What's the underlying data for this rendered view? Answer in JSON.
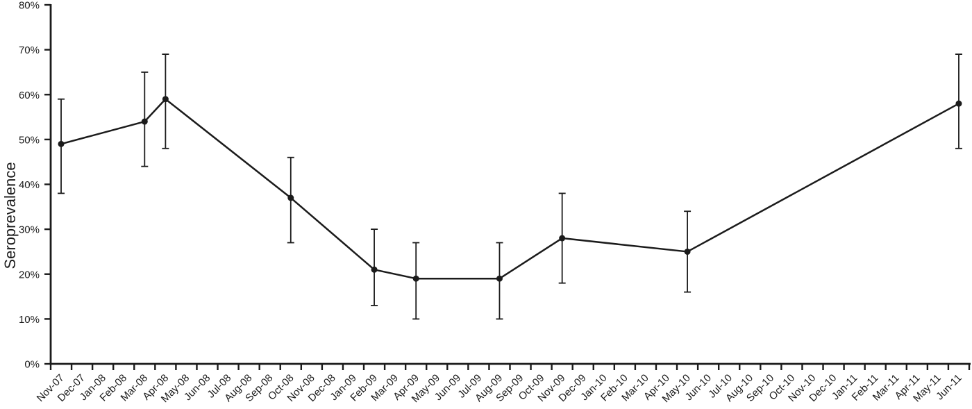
{
  "figure": {
    "background": "#ffffff",
    "ink_color": "#1b1b1b"
  },
  "chart_data": {
    "type": "line",
    "title": "",
    "xlabel": "",
    "ylabel": "Seroprevalence",
    "ylim": [
      0,
      80
    ],
    "grid": false,
    "legend": false,
    "error_bars": true,
    "marker": "filled-circle",
    "y_ticks": [
      {
        "value": 0,
        "label": "0%"
      },
      {
        "value": 10,
        "label": "10%"
      },
      {
        "value": 20,
        "label": "20%"
      },
      {
        "value": 30,
        "label": "30%"
      },
      {
        "value": 40,
        "label": "40%"
      },
      {
        "value": 50,
        "label": "50%"
      },
      {
        "value": 60,
        "label": "60%"
      },
      {
        "value": 70,
        "label": "70%"
      },
      {
        "value": 80,
        "label": "80%"
      }
    ],
    "categories": [
      "Nov-07",
      "Dec-07",
      "Jan-08",
      "Feb-08",
      "Mar-08",
      "Apr-08",
      "May-08",
      "Jun-08",
      "Jul-08",
      "Aug-08",
      "Sep-08",
      "Oct-08",
      "Nov-08",
      "Dec-08",
      "Jan-09",
      "Feb-09",
      "Mar-09",
      "Apr-09",
      "May-09",
      "Jun-09",
      "Jul-09",
      "Aug-09",
      "Sep-09",
      "Oct-09",
      "Nov-09",
      "Dec-09",
      "Jan-10",
      "Feb-10",
      "Mar-10",
      "Apr-10",
      "May-10",
      "Jun-10",
      "Jul-10",
      "Aug-10",
      "Sep-10",
      "Oct-10",
      "Nov-10",
      "Dec-10",
      "Jan-11",
      "Feb-11",
      "Mar-11",
      "Apr-11",
      "May-11",
      "Jun-11"
    ],
    "series": [
      {
        "name": "Seroprevalence",
        "points": [
          {
            "x": "Nov-07",
            "y": 49,
            "ci_low": 38,
            "ci_high": 59
          },
          {
            "x": "Mar-08",
            "y": 54,
            "ci_low": 44,
            "ci_high": 65
          },
          {
            "x": "Apr-08",
            "y": 59,
            "ci_low": 48,
            "ci_high": 69
          },
          {
            "x": "Oct-08",
            "y": 37,
            "ci_low": 27,
            "ci_high": 46
          },
          {
            "x": "Feb-09",
            "y": 21,
            "ci_low": 13,
            "ci_high": 30
          },
          {
            "x": "Apr-09",
            "y": 19,
            "ci_low": 10,
            "ci_high": 27
          },
          {
            "x": "Aug-09",
            "y": 19,
            "ci_low": 10,
            "ci_high": 27
          },
          {
            "x": "Nov-09",
            "y": 28,
            "ci_low": 18,
            "ci_high": 38
          },
          {
            "x": "May-10",
            "y": 25,
            "ci_low": 16,
            "ci_high": 34
          },
          {
            "x": "Jun-11",
            "y": 58,
            "ci_low": 48,
            "ci_high": 69
          }
        ]
      }
    ]
  }
}
